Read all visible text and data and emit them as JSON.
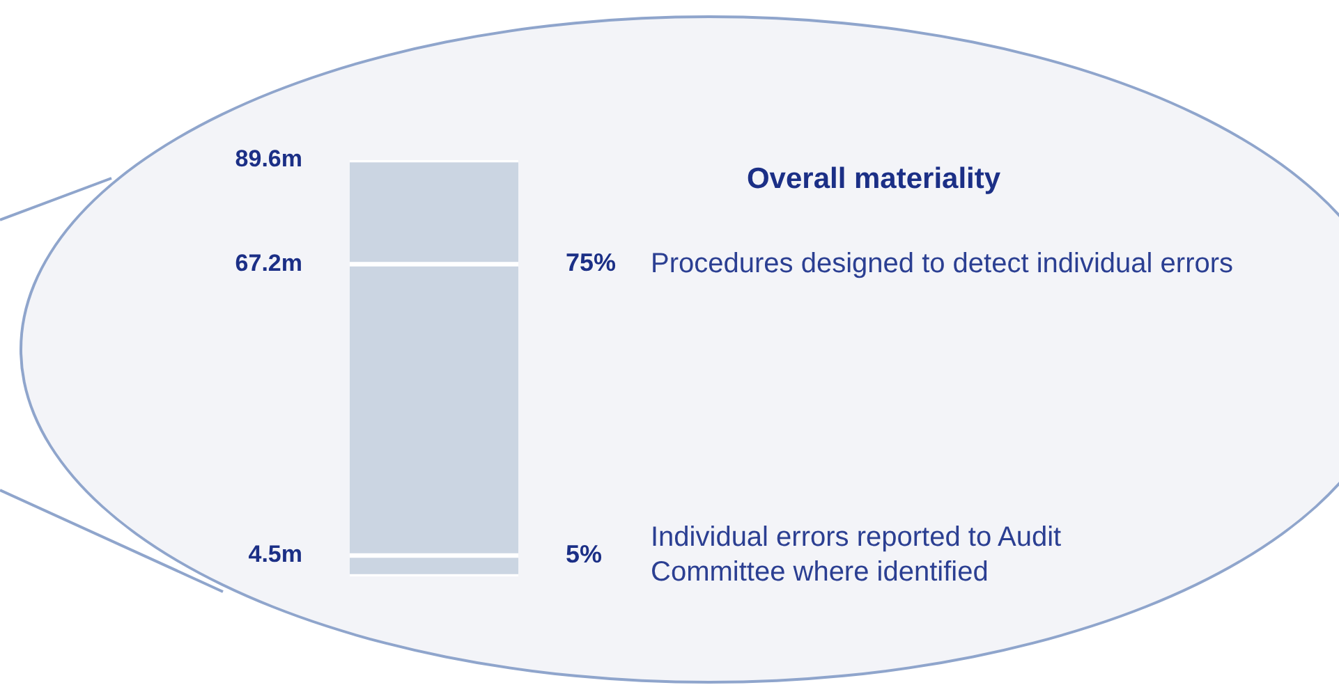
{
  "chart_data": {
    "type": "bar",
    "stacked": true,
    "title": "Overall materiality",
    "categories": [
      null
    ],
    "series": [
      {
        "color": "#cbd5e2",
        "values": [
          4.5
        ]
      },
      {
        "color": "#cbd5e2",
        "values": [
          62.7
        ]
      },
      {
        "color": "#cbd5e2",
        "values": [
          22.4
        ]
      }
    ],
    "ylim": [
      0,
      89.6
    ],
    "yticks": [
      {
        "value": 4.5,
        "label": "4.5m"
      },
      {
        "value": 67.2,
        "label": "67.2m"
      },
      {
        "value": 89.6,
        "label": "89.6m"
      }
    ],
    "annotations": [
      "75%",
      "Procedures designed to detect individual errors",
      "5%",
      "Individual errors reported to Audit\nCommittee where identified"
    ],
    "grid": false,
    "legend": false
  }
}
